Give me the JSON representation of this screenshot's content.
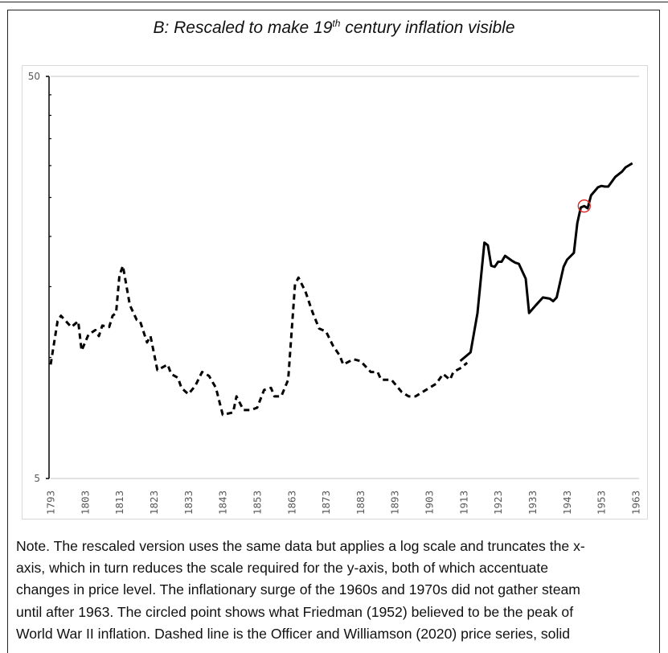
{
  "title": {
    "main_before": "B: Rescaled to make 19",
    "superscript": "th",
    "main_after": " century inflation visible"
  },
  "chart_data": {
    "type": "line",
    "title": "B: Rescaled to make 19th century inflation visible",
    "xlabel": "",
    "ylabel": "",
    "y_scale": "log",
    "ylim": [
      5,
      50
    ],
    "xlim": [
      1793,
      1963
    ],
    "y_tick_labels": [
      "50",
      "5"
    ],
    "y_minor_ticks": [
      10,
      15,
      20,
      25,
      30,
      35,
      40,
      45
    ],
    "x_tick_labels": [
      "1793",
      "1803",
      "1813",
      "1823",
      "1833",
      "1843",
      "1853",
      "1863",
      "1873",
      "1883",
      "1893",
      "1903",
      "1913",
      "1923",
      "1933",
      "1943",
      "1953",
      "1963"
    ],
    "grid": "horizontal lines at 5 and 50 only",
    "colors": {
      "line": "#000000",
      "circle": "#e02020",
      "grid": "#d9d9d9"
    },
    "series": [
      {
        "style": "dashed",
        "x": [
          1793,
          1795,
          1796,
          1799,
          1801,
          1802,
          1804,
          1806,
          1807,
          1808,
          1810,
          1811,
          1812,
          1813,
          1814,
          1816,
          1818,
          1819,
          1821,
          1822,
          1824,
          1827,
          1828,
          1830,
          1831,
          1833,
          1835,
          1837,
          1839,
          1841,
          1843,
          1846,
          1847,
          1849,
          1851,
          1853,
          1855,
          1857,
          1858,
          1860,
          1862,
          1864,
          1865,
          1867,
          1869,
          1871,
          1873,
          1875,
          1877,
          1878,
          1881,
          1883,
          1886,
          1888,
          1889,
          1892,
          1895,
          1897,
          1899,
          1903,
          1905,
          1907,
          1909,
          1910,
          1912,
          1914
        ],
        "y": [
          9.6,
          12.3,
          12.7,
          11.9,
          12.3,
          10.4,
          11.4,
          11.7,
          11.3,
          12.0,
          11.9,
          12.7,
          12.9,
          16.0,
          16.9,
          13.5,
          12.4,
          12.3,
          10.9,
          11.3,
          9.3,
          9.6,
          9.1,
          8.9,
          8.4,
          8.1,
          8.5,
          9.2,
          9.0,
          8.4,
          7.2,
          7.3,
          8.0,
          7.4,
          7.4,
          7.5,
          8.3,
          8.4,
          8.0,
          8.0,
          8.8,
          15.2,
          15.8,
          14.6,
          13.0,
          11.8,
          11.6,
          10.7,
          10.1,
          9.6,
          9.9,
          9.8,
          9.2,
          9.2,
          8.8,
          8.8,
          8.2,
          8.0,
          8.0,
          8.4,
          8.6,
          9.1,
          8.8,
          9.2,
          9.4,
          9.7
        ]
      },
      {
        "style": "solid",
        "x": [
          1912,
          1915,
          1917,
          1919,
          1920,
          1921,
          1922,
          1923,
          1924,
          1925,
          1927,
          1928,
          1929,
          1931,
          1932,
          1934,
          1936,
          1938,
          1939,
          1940,
          1942,
          1943,
          1945,
          1946,
          1947,
          1948,
          1949,
          1950,
          1952,
          1953,
          1954,
          1955,
          1957,
          1959,
          1960,
          1962
        ],
        "y": [
          9.8,
          10.3,
          12.9,
          19.3,
          19.0,
          16.9,
          16.8,
          17.3,
          17.3,
          17.9,
          17.4,
          17.2,
          17.1,
          15.7,
          12.9,
          13.5,
          14.1,
          14.0,
          13.8,
          14.1,
          16.8,
          17.5,
          18.2,
          21.6,
          23.6,
          23.8,
          23.5,
          25.3,
          26.5,
          26.7,
          26.6,
          26.6,
          28.1,
          29.0,
          29.7,
          30.4
        ]
      }
    ],
    "annotations": [
      {
        "type": "circle",
        "x": 1948,
        "y": 23.8
      }
    ]
  },
  "note": {
    "lines": [
      "Note.  The rescaled version uses the same data but applies a log scale and truncates the x-",
      "axis, which in turn reduces the scale required for the y-axis, both of which accentuate",
      "changes in price level.  The inflationary surge of the 1960s and 1970s did not gather steam",
      "until after 1963. The circled point shows what Friedman (1952) believed to be the peak of",
      "World War II inflation. Dashed line is the Officer and Williamson (2020) price series, solid"
    ]
  }
}
